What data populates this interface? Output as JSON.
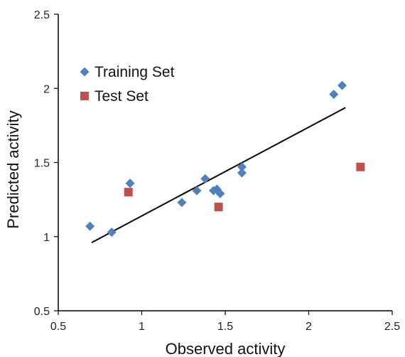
{
  "chart_data": {
    "type": "scatter",
    "xlabel": "Observed activity",
    "ylabel": "Predicted activity",
    "xlim": [
      0.5,
      2.5
    ],
    "ylim": [
      0.5,
      2.5
    ],
    "xticks": [
      "0.5",
      "1",
      "1.5",
      "2",
      "2.5"
    ],
    "yticks": [
      "0.5",
      "1",
      "1.5",
      "2",
      "2.5"
    ],
    "grid": false,
    "legend_position": "top-left",
    "series": [
      {
        "name": "Training Set",
        "marker": "diamond",
        "color": "#4f81bd",
        "points": [
          [
            0.69,
            1.07
          ],
          [
            0.82,
            1.03
          ],
          [
            0.93,
            1.36
          ],
          [
            1.24,
            1.23
          ],
          [
            1.33,
            1.31
          ],
          [
            1.38,
            1.39
          ],
          [
            1.43,
            1.31
          ],
          [
            1.45,
            1.32
          ],
          [
            1.47,
            1.29
          ],
          [
            1.6,
            1.47
          ],
          [
            1.6,
            1.43
          ],
          [
            2.15,
            1.96
          ],
          [
            2.2,
            2.02
          ]
        ]
      },
      {
        "name": "Test Set",
        "marker": "square",
        "color": "#c0504d",
        "points": [
          [
            0.92,
            1.3
          ],
          [
            1.46,
            1.2
          ],
          [
            2.31,
            1.47
          ]
        ]
      }
    ],
    "trendline": {
      "color": "#000000",
      "x": [
        0.7,
        2.22
      ],
      "y": [
        0.96,
        1.87
      ]
    }
  }
}
